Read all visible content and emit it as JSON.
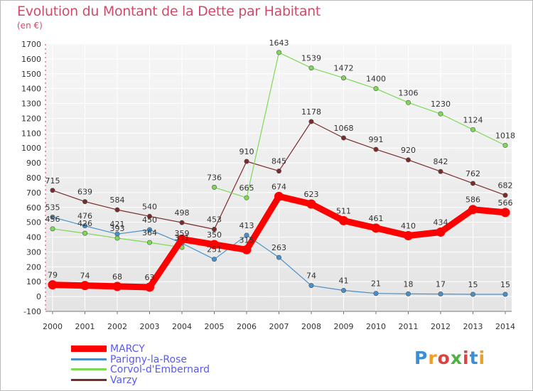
{
  "chart_data": {
    "type": "line",
    "title": "Evolution du Montant de la Dette par Habitant",
    "subtitle": "(en €)",
    "xlabel": "",
    "ylabel": "",
    "x": [
      "2000",
      "2001",
      "2002",
      "2003",
      "2004",
      "2005",
      "2006",
      "2007",
      "2008",
      "2009",
      "2010",
      "2011",
      "2012",
      "2013",
      "2014"
    ],
    "ylim": [
      -100,
      1700
    ],
    "yticks": [
      "-100",
      "0",
      "100",
      "200",
      "300",
      "400",
      "500",
      "600",
      "700",
      "800",
      "900",
      "1000",
      "1100",
      "1200",
      "1300",
      "1400",
      "1500",
      "1600",
      "1700"
    ],
    "grid": true,
    "legend_position": "bottom-left",
    "series": [
      {
        "name": "MARCY",
        "color": "#ff0000",
        "values": [
          79,
          74,
          68,
          63,
          386,
          350,
          315,
          674,
          623,
          511,
          461,
          410,
          434,
          586,
          566
        ],
        "labels": [
          "79",
          "74",
          "68",
          "63",
          "",
          "350",
          "315",
          "674",
          "623",
          "511",
          "461",
          "410",
          "434",
          "586",
          "566"
        ]
      },
      {
        "name": "Parigny-la-Rose",
        "color": "#4a90c8",
        "values": [
          535,
          476,
          421,
          450,
          359,
          251,
          413,
          263,
          74,
          41,
          21,
          18,
          17,
          15,
          15
        ],
        "labels": [
          "535",
          "476",
          "421",
          "450",
          "359",
          "251",
          "413",
          "263",
          "74",
          "41",
          "21",
          "18",
          "17",
          "15",
          "15"
        ]
      },
      {
        "name": "Corvol-d'Embernard",
        "color": "#7ed957",
        "values": [
          456,
          426,
          393,
          364,
          331,
          736,
          665,
          1643,
          1539,
          1472,
          1400,
          1306,
          1230,
          1124,
          1018
        ],
        "labels": [
          "456",
          "426",
          "393",
          "364",
          "331",
          "736",
          "665",
          "1643",
          "1539",
          "1472",
          "1400",
          "1306",
          "1230",
          "1124",
          "1018"
        ],
        "segments": [
          [
            0,
            4
          ],
          [
            5,
            6
          ],
          [
            6,
            14
          ]
        ]
      },
      {
        "name": "Varzy",
        "color": "#7a2c2c",
        "values": [
          715,
          639,
          584,
          540,
          498,
          453,
          910,
          845,
          1178,
          1068,
          991,
          920,
          842,
          762,
          682
        ],
        "labels": [
          "715",
          "639",
          "584",
          "540",
          "498",
          "453",
          "910",
          "845",
          "1178",
          "1068",
          "991",
          "920",
          "842",
          "762",
          "682"
        ]
      }
    ]
  },
  "logo": {
    "text": "Proxiti",
    "letters": [
      "P",
      "r",
      "o",
      "x",
      "i",
      "t",
      "i"
    ],
    "colors": [
      "#3a8fd8",
      "#f0a020",
      "#e04040",
      "#50b040",
      "#e04040",
      "#3a8fd8",
      "#f0a020"
    ]
  }
}
